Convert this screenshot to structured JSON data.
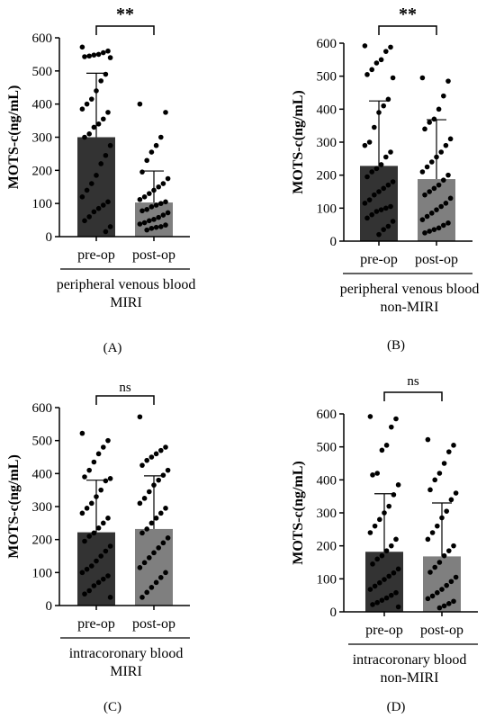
{
  "chart_data": [
    {
      "type": "bar",
      "panel_label": "(A)",
      "ylabel": "MOTS-c(ng/mL)",
      "ylim": [
        0,
        600
      ],
      "yticks": [
        "0",
        "100",
        "200",
        "300",
        "400",
        "500",
        "600"
      ],
      "categories": [
        "pre-op",
        "post-op"
      ],
      "group_label_lines": [
        "peripheral venous blood",
        "MIRI"
      ],
      "significance": "**",
      "bar_colors": [
        "#333333",
        "#7f7f7f"
      ],
      "values": [
        300,
        103
      ],
      "error_upper": [
        493,
        198
      ],
      "points": [
        [
          572,
          560,
          555,
          550,
          548,
          545,
          543,
          540,
          490,
          470,
          440,
          415,
          400,
          385,
          375,
          355,
          340,
          330,
          310,
          300,
          275,
          245,
          220,
          185,
          160,
          140,
          120,
          105,
          95,
          85,
          75,
          60,
          48,
          30,
          15
        ],
        [
          400,
          375,
          300,
          275,
          255,
          230,
          195,
          175,
          160,
          150,
          140,
          130,
          120,
          112,
          105,
          100,
          95,
          90,
          82,
          78,
          72,
          65,
          58,
          52,
          48,
          42,
          38,
          35,
          30,
          28,
          25,
          20
        ]
      ]
    },
    {
      "type": "bar",
      "panel_label": "(B)",
      "ylabel": "MOTS-c(ng/mL)",
      "ylim": [
        0,
        600
      ],
      "yticks": [
        "0",
        "100",
        "200",
        "300",
        "400",
        "500",
        "600"
      ],
      "categories": [
        "pre-op",
        "post-op"
      ],
      "group_label_lines": [
        "peripheral venous blood",
        "non-MIRI"
      ],
      "significance": "**",
      "bar_colors": [
        "#333333",
        "#7f7f7f"
      ],
      "values": [
        228,
        188
      ],
      "error_upper": [
        425,
        368
      ],
      "points": [
        [
          592,
          588,
          575,
          550,
          540,
          520,
          505,
          495,
          430,
          410,
          390,
          345,
          300,
          290,
          270,
          255,
          232,
          220,
          210,
          195,
          180,
          170,
          160,
          150,
          140,
          125,
          115,
          105,
          100,
          95,
          90,
          80,
          70,
          60,
          45,
          35,
          20
        ],
        [
          495,
          485,
          440,
          400,
          370,
          360,
          340,
          310,
          290,
          270,
          255,
          240,
          225,
          210,
          200,
          185,
          170,
          160,
          150,
          140,
          130,
          115,
          105,
          95,
          85,
          75,
          65,
          55,
          48,
          40,
          35,
          30,
          25
        ]
      ]
    },
    {
      "type": "bar",
      "panel_label": "(C)",
      "ylabel": "MOTS-c(ng/mL)",
      "ylim": [
        0,
        600
      ],
      "yticks": [
        "0",
        "100",
        "200",
        "300",
        "400",
        "500",
        "600"
      ],
      "categories": [
        "pre-op",
        "post-op"
      ],
      "group_label_lines": [
        "intracoronary blood",
        "MIRI"
      ],
      "significance": "ns",
      "bar_colors": [
        "#333333",
        "#7f7f7f"
      ],
      "values": [
        222,
        232
      ],
      "error_upper": [
        380,
        393
      ],
      "points": [
        [
          522,
          500,
          480,
          460,
          435,
          410,
          390,
          385,
          378,
          350,
          330,
          310,
          295,
          280,
          265,
          250,
          235,
          220,
          210,
          195,
          180,
          165,
          150,
          135,
          120,
          110,
          100,
          90,
          80,
          70,
          60,
          45,
          35,
          25
        ],
        [
          572,
          480,
          470,
          460,
          450,
          440,
          425,
          410,
          395,
          380,
          365,
          345,
          325,
          310,
          295,
          280,
          265,
          250,
          232,
          220,
          205,
          190,
          175,
          160,
          145,
          130,
          115,
          100,
          85,
          70,
          55,
          40,
          25
        ]
      ]
    },
    {
      "type": "bar",
      "panel_label": "(D)",
      "ylabel": "MOTS-c(ng/mL)",
      "ylim": [
        0,
        600
      ],
      "yticks": [
        "0",
        "100",
        "200",
        "300",
        "400",
        "500",
        "600"
      ],
      "categories": [
        "pre-op",
        "post-op"
      ],
      "group_label_lines": [
        "intracoronary blood",
        "non-MIRI"
      ],
      "significance": "ns",
      "bar_colors": [
        "#333333",
        "#7f7f7f"
      ],
      "values": [
        182,
        168
      ],
      "error_upper": [
        358,
        330
      ],
      "points": [
        [
          592,
          585,
          560,
          505,
          490,
          420,
          415,
          385,
          355,
          320,
          300,
          280,
          260,
          240,
          220,
          200,
          185,
          170,
          160,
          145,
          130,
          118,
          108,
          98,
          88,
          78,
          68,
          58,
          50,
          42,
          35,
          28,
          22,
          15
        ],
        [
          522,
          505,
          485,
          450,
          420,
          400,
          370,
          360,
          340,
          305,
          285,
          260,
          240,
          220,
          200,
          185,
          170,
          150,
          135,
          120,
          105,
          92,
          80,
          68,
          58,
          48,
          40,
          32,
          25,
          18,
          12
        ]
      ]
    }
  ]
}
